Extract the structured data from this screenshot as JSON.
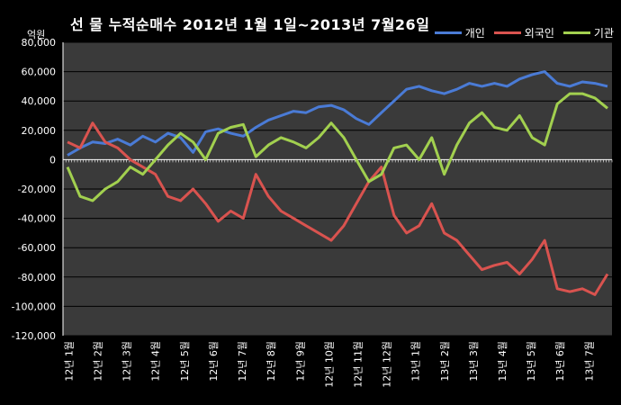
{
  "chart_data": {
    "type": "line",
    "title": "선 물 누적순매수 2012년 1월 1일~2013년 7월26일",
    "unit_label": "억원",
    "ylim": [
      -120000,
      80000
    ],
    "yticks": [
      "-120,000",
      "-100,000",
      "-80,000",
      "-60,000",
      "-40,000",
      "-20,000",
      "0",
      "20,000",
      "40,000",
      "60,000",
      "80,000"
    ],
    "ytick_values": [
      -120000,
      -100000,
      -80000,
      -60000,
      -40000,
      -20000,
      0,
      20000,
      40000,
      60000,
      80000
    ],
    "x_labels": [
      "12년 1월",
      "12년 2월",
      "12년 3월",
      "12년 4월",
      "12년 5월",
      "12년 6월",
      "12년 7월",
      "12년 8월",
      "12년 9월",
      "12년 10월",
      "12년 11월",
      "12년 12월",
      "13년 1월",
      "13년 2월",
      "13년 3월",
      "13년 4월",
      "13년 5월",
      "13년 6월",
      "13년 7월"
    ],
    "grid": true,
    "legend_position": "top-right",
    "series": [
      {
        "name": "개인",
        "color": "#4a7bd6",
        "values": [
          3000,
          8000,
          12000,
          11000,
          14000,
          10000,
          16000,
          12000,
          18000,
          15000,
          5000,
          19000,
          21000,
          18000,
          16000,
          22000,
          27000,
          30000,
          33000,
          32000,
          36000,
          37000,
          34000,
          28000,
          24000,
          32000,
          40000,
          48000,
          50000,
          47000,
          45000,
          48000,
          52000,
          50000,
          52000,
          50000,
          55000,
          58000,
          60000,
          52000,
          50000,
          53000,
          52000,
          50000
        ]
      },
      {
        "name": "외국인",
        "color": "#d9534f",
        "values": [
          12000,
          8000,
          25000,
          12000,
          8000,
          0,
          -5000,
          -10000,
          -25000,
          -28000,
          -20000,
          -30000,
          -42000,
          -35000,
          -40000,
          -10000,
          -25000,
          -35000,
          -40000,
          -45000,
          -50000,
          -55000,
          -45000,
          -30000,
          -15000,
          -5000,
          -38000,
          -50000,
          -45000,
          -30000,
          -50000,
          -55000,
          -65000,
          -75000,
          -72000,
          -70000,
          -78000,
          -68000,
          -55000,
          -88000,
          -90000,
          -88000,
          -92000,
          -78000
        ]
      },
      {
        "name": "기관",
        "color": "#a2d04f",
        "values": [
          -5000,
          -25000,
          -28000,
          -20000,
          -15000,
          -5000,
          -10000,
          0,
          10000,
          18000,
          12000,
          0,
          18000,
          22000,
          24000,
          2000,
          10000,
          15000,
          12000,
          8000,
          15000,
          25000,
          15000,
          0,
          -15000,
          -10000,
          8000,
          10000,
          0,
          15000,
          -10000,
          10000,
          25000,
          32000,
          22000,
          20000,
          30000,
          15000,
          10000,
          38000,
          45000,
          45000,
          42000,
          35000
        ]
      }
    ]
  }
}
